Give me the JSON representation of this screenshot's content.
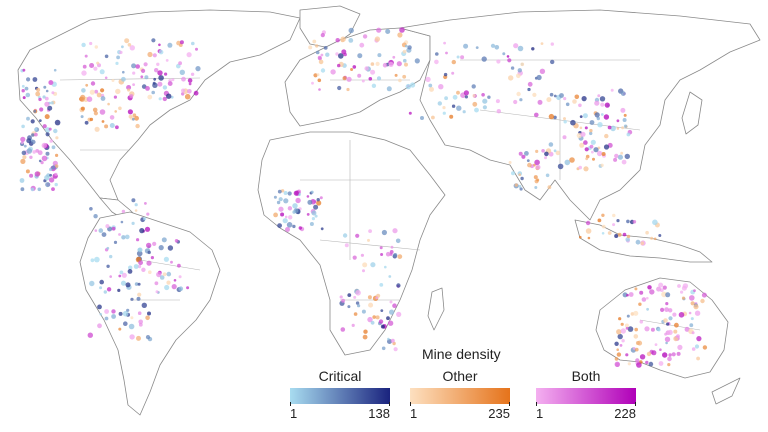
{
  "map": {
    "type": "world-density-map",
    "legend": {
      "title": "Mine density",
      "categories": [
        {
          "label": "Critical",
          "min": "1",
          "max": "138",
          "color_low": "#a8dcf0",
          "color_high": "#1a237e"
        },
        {
          "label": "Other",
          "min": "1",
          "max": "235",
          "color_low": "#fde0c0",
          "color_high": "#e5731b"
        },
        {
          "label": "Both",
          "min": "1",
          "max": "228",
          "color_low": "#f4b0f0",
          "color_high": "#b000b8"
        }
      ]
    }
  }
}
